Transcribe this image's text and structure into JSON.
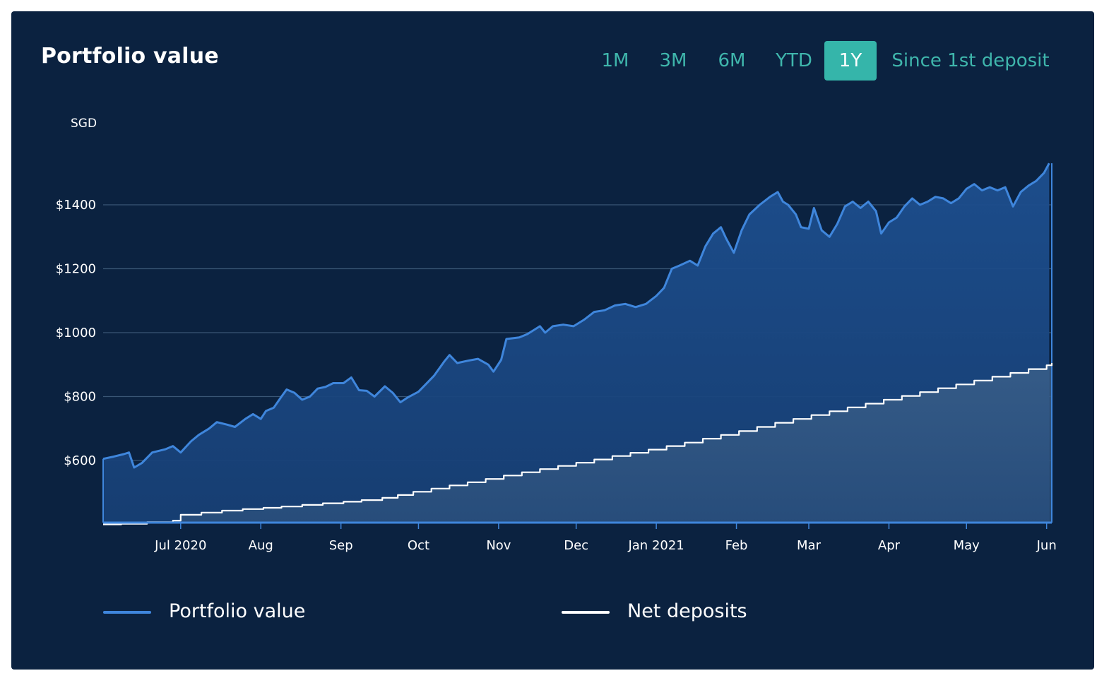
{
  "header": {
    "title": "Portfolio value"
  },
  "range_selector": {
    "options": [
      "1M",
      "3M",
      "6M",
      "YTD",
      "1Y",
      "Since 1st deposit"
    ],
    "selected": "1Y"
  },
  "colors": {
    "background": "#0b2240",
    "portfolio_line": "#3f86dc",
    "deposits_line": "#ffffff",
    "accent": "#35b5aa"
  },
  "legend": [
    {
      "label": "Portfolio value",
      "color": "#3f86dc"
    },
    {
      "label": "Net deposits",
      "color": "#ffffff"
    }
  ],
  "chart_data": {
    "type": "area",
    "ylabel": "SGD",
    "ylim": [
      400,
      1550
    ],
    "yticks": [
      600,
      800,
      1000,
      1200,
      1400
    ],
    "ytick_labels": [
      "$600",
      "$800",
      "$1000",
      "$1200",
      "$1400"
    ],
    "xlim": [
      "2020-06-01",
      "2021-06-03"
    ],
    "xticks": [
      "2020-07-01",
      "2020-08-01",
      "2020-09-01",
      "2020-10-01",
      "2020-11-01",
      "2020-12-01",
      "2021-01-01",
      "2021-02-01",
      "2021-03-01",
      "2021-04-01",
      "2021-05-01",
      "2021-06-01"
    ],
    "xtick_labels": [
      "Jul 2020",
      "Aug",
      "Sep",
      "Oct",
      "Nov",
      "Dec",
      "Jan 2021",
      "Feb",
      "Mar",
      "Apr",
      "May",
      "Jun"
    ],
    "grid": true,
    "legend_position": "bottom",
    "series": [
      {
        "name": "Portfolio value",
        "color": "#3f86dc",
        "points": [
          [
            "2020-06-01",
            605
          ],
          [
            "2020-06-05",
            612
          ],
          [
            "2020-06-09",
            620
          ],
          [
            "2020-06-11",
            625
          ],
          [
            "2020-06-13",
            578
          ],
          [
            "2020-06-16",
            592
          ],
          [
            "2020-06-20",
            625
          ],
          [
            "2020-06-25",
            635
          ],
          [
            "2020-06-28",
            645
          ],
          [
            "2020-07-01",
            625
          ],
          [
            "2020-07-05",
            660
          ],
          [
            "2020-07-08",
            680
          ],
          [
            "2020-07-12",
            700
          ],
          [
            "2020-07-15",
            720
          ],
          [
            "2020-07-19",
            712
          ],
          [
            "2020-07-22",
            705
          ],
          [
            "2020-07-26",
            730
          ],
          [
            "2020-07-29",
            745
          ],
          [
            "2020-08-01",
            730
          ],
          [
            "2020-08-03",
            755
          ],
          [
            "2020-08-06",
            765
          ],
          [
            "2020-08-09",
            800
          ],
          [
            "2020-08-11",
            822
          ],
          [
            "2020-08-14",
            812
          ],
          [
            "2020-08-17",
            790
          ],
          [
            "2020-08-20",
            800
          ],
          [
            "2020-08-23",
            825
          ],
          [
            "2020-08-26",
            830
          ],
          [
            "2020-08-29",
            842
          ],
          [
            "2020-09-02",
            842
          ],
          [
            "2020-09-05",
            860
          ],
          [
            "2020-09-08",
            820
          ],
          [
            "2020-09-11",
            818
          ],
          [
            "2020-09-14",
            800
          ],
          [
            "2020-09-18",
            832
          ],
          [
            "2020-09-21",
            812
          ],
          [
            "2020-09-24",
            782
          ],
          [
            "2020-09-27",
            798
          ],
          [
            "2020-10-01",
            815
          ],
          [
            "2020-10-04",
            840
          ],
          [
            "2020-10-07",
            865
          ],
          [
            "2020-10-11",
            910
          ],
          [
            "2020-10-13",
            930
          ],
          [
            "2020-10-16",
            905
          ],
          [
            "2020-10-20",
            912
          ],
          [
            "2020-10-24",
            918
          ],
          [
            "2020-10-28",
            900
          ],
          [
            "2020-10-30",
            878
          ],
          [
            "2020-11-02",
            915
          ],
          [
            "2020-11-04",
            980
          ],
          [
            "2020-11-09",
            985
          ],
          [
            "2020-11-12",
            995
          ],
          [
            "2020-11-15",
            1010
          ],
          [
            "2020-11-17",
            1020
          ],
          [
            "2020-11-19",
            1000
          ],
          [
            "2020-11-22",
            1020
          ],
          [
            "2020-11-26",
            1025
          ],
          [
            "2020-11-30",
            1020
          ],
          [
            "2020-12-04",
            1040
          ],
          [
            "2020-12-08",
            1065
          ],
          [
            "2020-12-12",
            1070
          ],
          [
            "2020-12-16",
            1085
          ],
          [
            "2020-12-20",
            1090
          ],
          [
            "2020-12-24",
            1080
          ],
          [
            "2020-12-28",
            1090
          ],
          [
            "2021-01-01",
            1115
          ],
          [
            "2021-01-04",
            1140
          ],
          [
            "2021-01-07",
            1200
          ],
          [
            "2021-01-10",
            1210
          ],
          [
            "2021-01-14",
            1225
          ],
          [
            "2021-01-17",
            1210
          ],
          [
            "2021-01-20",
            1270
          ],
          [
            "2021-01-23",
            1310
          ],
          [
            "2021-01-26",
            1330
          ],
          [
            "2021-01-28",
            1295
          ],
          [
            "2021-01-31",
            1250
          ],
          [
            "2021-02-03",
            1320
          ],
          [
            "2021-02-06",
            1370
          ],
          [
            "2021-02-10",
            1400
          ],
          [
            "2021-02-14",
            1425
          ],
          [
            "2021-02-17",
            1440
          ],
          [
            "2021-02-19",
            1410
          ],
          [
            "2021-02-21",
            1400
          ],
          [
            "2021-02-24",
            1370
          ],
          [
            "2021-02-26",
            1330
          ],
          [
            "2021-03-01",
            1325
          ],
          [
            "2021-03-03",
            1390
          ],
          [
            "2021-03-06",
            1320
          ],
          [
            "2021-03-09",
            1300
          ],
          [
            "2021-03-12",
            1340
          ],
          [
            "2021-03-15",
            1395
          ],
          [
            "2021-03-18",
            1410
          ],
          [
            "2021-03-21",
            1390
          ],
          [
            "2021-03-24",
            1410
          ],
          [
            "2021-03-27",
            1380
          ],
          [
            "2021-03-29",
            1310
          ],
          [
            "2021-04-01",
            1345
          ],
          [
            "2021-04-04",
            1360
          ],
          [
            "2021-04-07",
            1395
          ],
          [
            "2021-04-10",
            1420
          ],
          [
            "2021-04-13",
            1400
          ],
          [
            "2021-04-16",
            1410
          ],
          [
            "2021-04-19",
            1425
          ],
          [
            "2021-04-22",
            1420
          ],
          [
            "2021-04-25",
            1405
          ],
          [
            "2021-04-28",
            1420
          ],
          [
            "2021-05-01",
            1450
          ],
          [
            "2021-05-04",
            1465
          ],
          [
            "2021-05-07",
            1445
          ],
          [
            "2021-05-10",
            1455
          ],
          [
            "2021-05-13",
            1445
          ],
          [
            "2021-05-16",
            1455
          ],
          [
            "2021-05-19",
            1395
          ],
          [
            "2021-05-22",
            1440
          ],
          [
            "2021-05-25",
            1460
          ],
          [
            "2021-05-28",
            1475
          ],
          [
            "2021-05-31",
            1500
          ],
          [
            "2021-06-02",
            1530
          ]
        ]
      },
      {
        "name": "Net deposits",
        "color": "#ffffff",
        "points": [
          [
            "2020-06-01",
            400
          ],
          [
            "2020-06-08",
            402
          ],
          [
            "2020-06-18",
            407
          ],
          [
            "2020-06-28",
            412
          ],
          [
            "2020-07-01",
            430
          ],
          [
            "2020-07-09",
            437
          ],
          [
            "2020-07-17",
            443
          ],
          [
            "2020-07-25",
            448
          ],
          [
            "2020-08-02",
            452
          ],
          [
            "2020-08-09",
            456
          ],
          [
            "2020-08-17",
            461
          ],
          [
            "2020-08-25",
            466
          ],
          [
            "2020-09-02",
            471
          ],
          [
            "2020-09-09",
            476
          ],
          [
            "2020-09-17",
            483
          ],
          [
            "2020-09-23",
            492
          ],
          [
            "2020-09-29",
            502
          ],
          [
            "2020-10-06",
            512
          ],
          [
            "2020-10-13",
            522
          ],
          [
            "2020-10-20",
            532
          ],
          [
            "2020-10-27",
            542
          ],
          [
            "2020-11-03",
            553
          ],
          [
            "2020-11-10",
            563
          ],
          [
            "2020-11-17",
            573
          ],
          [
            "2020-11-24",
            583
          ],
          [
            "2020-12-01",
            593
          ],
          [
            "2020-12-08",
            603
          ],
          [
            "2020-12-15",
            614
          ],
          [
            "2020-12-22",
            624
          ],
          [
            "2020-12-29",
            634
          ],
          [
            "2021-01-05",
            645
          ],
          [
            "2021-01-12",
            656
          ],
          [
            "2021-01-19",
            668
          ],
          [
            "2021-01-26",
            680
          ],
          [
            "2021-02-02",
            692
          ],
          [
            "2021-02-09",
            705
          ],
          [
            "2021-02-16",
            718
          ],
          [
            "2021-02-23",
            730
          ],
          [
            "2021-03-02",
            742
          ],
          [
            "2021-03-09",
            754
          ],
          [
            "2021-03-16",
            766
          ],
          [
            "2021-03-23",
            778
          ],
          [
            "2021-03-30",
            790
          ],
          [
            "2021-04-06",
            802
          ],
          [
            "2021-04-13",
            814
          ],
          [
            "2021-04-20",
            826
          ],
          [
            "2021-04-27",
            838
          ],
          [
            "2021-05-04",
            850
          ],
          [
            "2021-05-11",
            862
          ],
          [
            "2021-05-18",
            874
          ],
          [
            "2021-05-25",
            886
          ],
          [
            "2021-06-01",
            898
          ],
          [
            "2021-06-03",
            905
          ]
        ]
      }
    ]
  }
}
